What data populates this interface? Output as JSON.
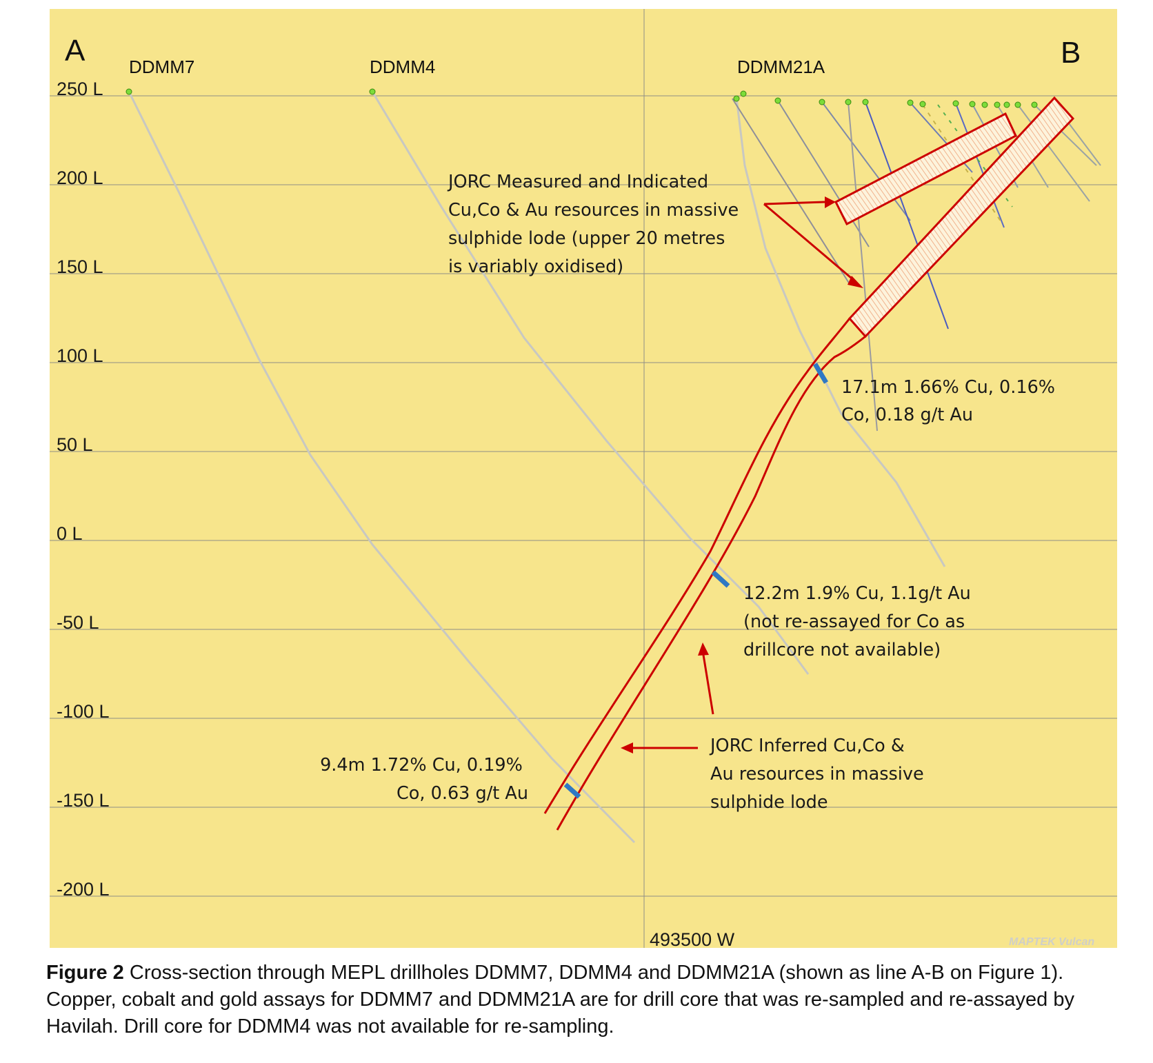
{
  "section": {
    "corner_left": "A",
    "corner_right": "B",
    "level_labels": [
      "250 L",
      "200 L",
      "150 L",
      "100 L",
      "50 L",
      "0 L",
      "-50 L",
      "-100 L",
      "-150 L",
      "-200 L"
    ],
    "easting_label": "493500 W",
    "software_mark": "MAPTEK Vulcan"
  },
  "drillholes": [
    {
      "name": "DDMM7"
    },
    {
      "name": "DDMM4"
    },
    {
      "name": "DDMM21A"
    }
  ],
  "annotations": {
    "measured_indicated": [
      "JORC Measured and Indicated",
      "Cu,Co & Au resources in massive",
      "sulphide lode (upper 20 metres",
      "is variably oxidised)"
    ],
    "intercept_ddmm21a": [
      "17.1m 1.66% Cu, 0.16%",
      "Co, 0.18 g/t Au"
    ],
    "intercept_ddmm4": [
      "12.2m 1.9% Cu, 1.1g/t Au",
      "(not re-assayed for Co as",
      "drillcore not available)"
    ],
    "intercept_ddmm7": [
      "9.4m 1.72% Cu, 0.19%",
      "Co, 0.63 g/t Au"
    ],
    "inferred": [
      "JORC Inferred Cu,Co &",
      "Au resources in massive",
      "sulphide lode"
    ]
  },
  "colors": {
    "background": "#f7e58c",
    "lode_outline": "#cc0000",
    "intercept": "#2f78c4",
    "collar": "#7ddc3a"
  },
  "caption": {
    "label": "Figure 2",
    "text": " Cross-section through MEPL drillholes DDMM7, DDMM4 and DDMM21A (shown as line A-B on Figure 1). Copper, cobalt and gold assays for DDMM7 and DDMM21A are for drill core that was re-sampled and re-assayed by Havilah. Drill core for DDMM4 was not available for re-sampling."
  }
}
